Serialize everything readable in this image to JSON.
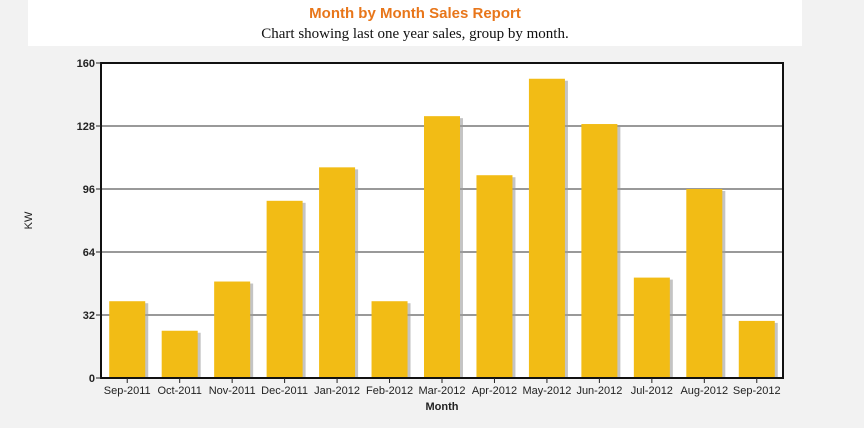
{
  "chart_data": {
    "type": "bar",
    "title": "Month by Month Sales Report",
    "subtitle": "Chart showing last one year sales, group by month.",
    "xlabel": "Month",
    "ylabel": "KW",
    "categories": [
      "Sep-2011",
      "Oct-2011",
      "Nov-2011",
      "Dec-2011",
      "Jan-2012",
      "Feb-2012",
      "Mar-2012",
      "Apr-2012",
      "May-2012",
      "Jun-2012",
      "Jul-2012",
      "Aug-2012",
      "Sep-2012"
    ],
    "values": [
      39,
      24,
      49,
      90,
      107,
      39,
      133,
      103,
      152,
      129,
      51,
      96,
      29
    ],
    "ylim": [
      0,
      160
    ],
    "yticks": [
      0,
      32,
      64,
      96,
      128,
      160
    ],
    "grid": true,
    "legend": "none"
  },
  "colors": {
    "bar": "#f2bc15",
    "bar_shadow": "#9c9c9c",
    "title": "#e8761a",
    "plot_background": "#ffffff",
    "page_background": "#f2f2f2"
  }
}
